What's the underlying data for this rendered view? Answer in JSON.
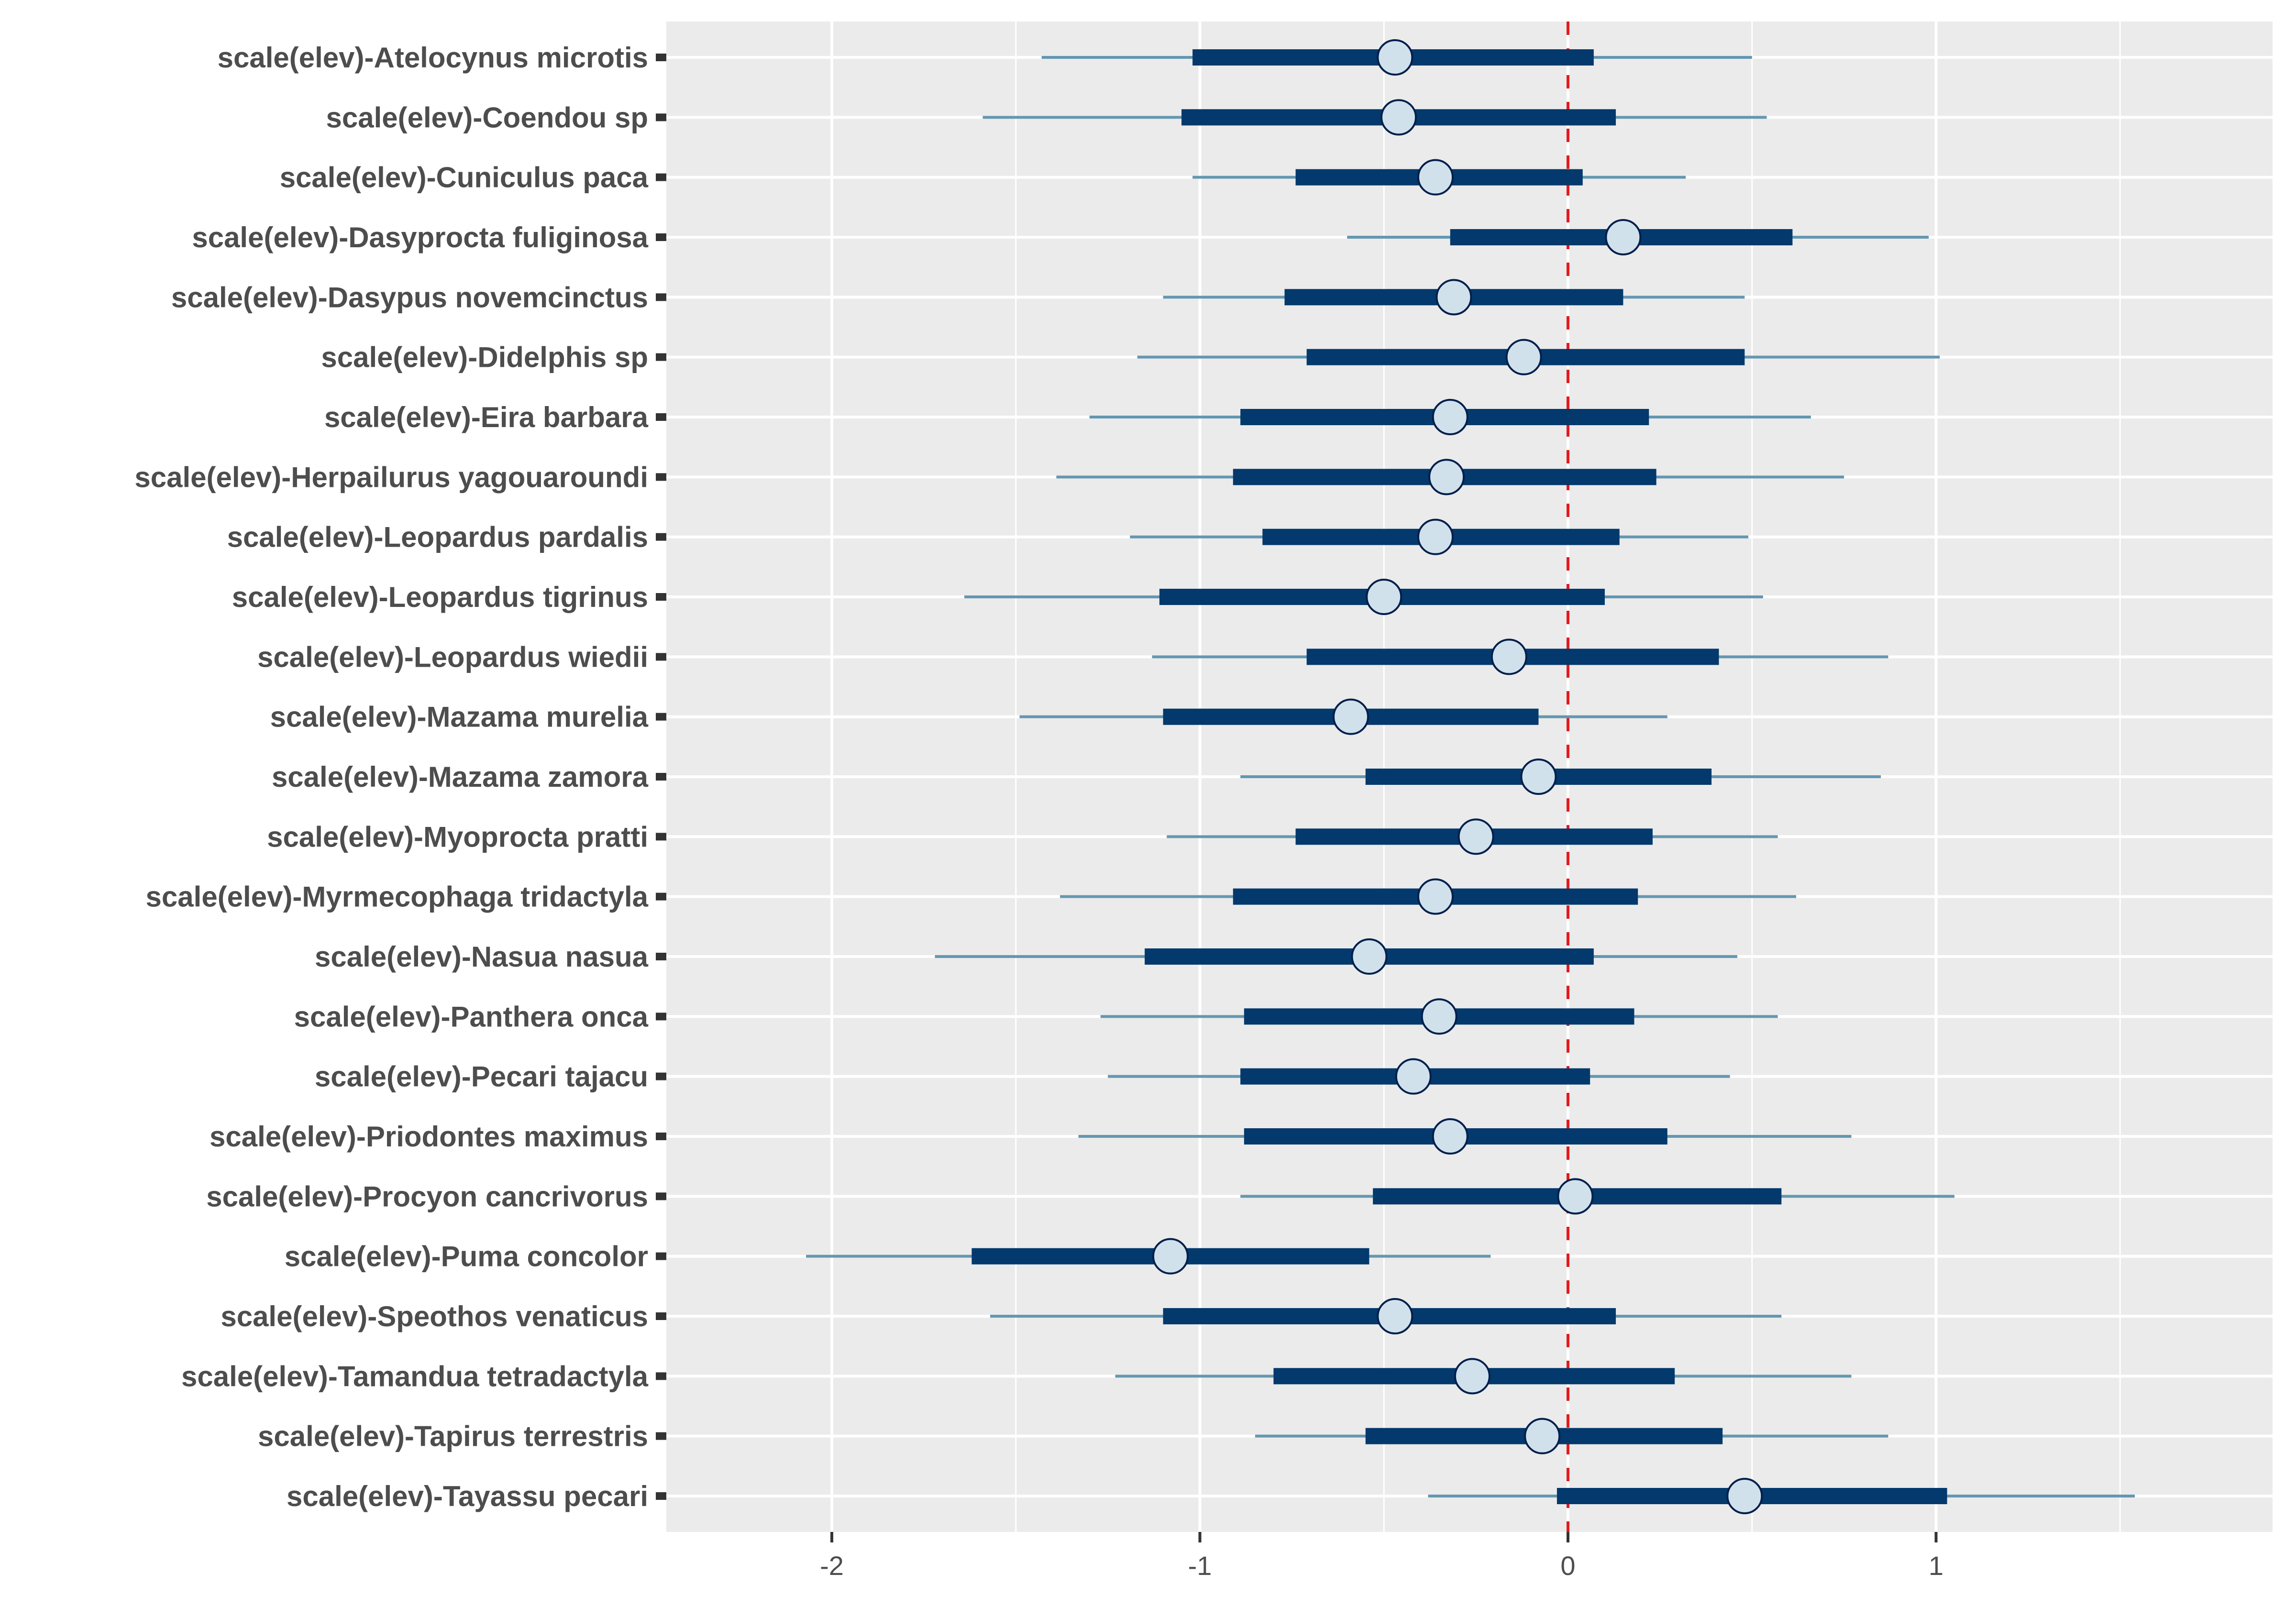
{
  "chart_data": {
    "type": "interval",
    "title": "",
    "xlabel": "",
    "ylabel": "",
    "xlim": [
      -2.45,
      1.9
    ],
    "x_ticks": [
      -2,
      -1,
      0,
      1
    ],
    "x_tick_labels": [
      "-2",
      "-1",
      "0",
      "1"
    ],
    "x_minor_gridlines": [
      -1.5,
      -0.5,
      0.5,
      1.5
    ],
    "reference_line": {
      "x": 0,
      "style": "dashed",
      "color": "#e41a1c"
    },
    "grid": true,
    "legend": "none",
    "colors": {
      "panel_background": "#ebebeb",
      "gridline": "#ffffff",
      "outer_interval": "#6497b1",
      "inner_interval": "#03396c",
      "point_fill": "#d1e1ec",
      "point_stroke": "#011f4b",
      "axis_text": "#4d4d4d",
      "tick": "#333333"
    },
    "series": [
      {
        "label": "scale(elev)-Atelocynus microtis",
        "outer": [
          -1.43,
          0.5
        ],
        "inner": [
          -1.02,
          0.07
        ],
        "estimate": -0.47
      },
      {
        "label": "scale(elev)-Coendou sp",
        "outer": [
          -1.59,
          0.54
        ],
        "inner": [
          -1.05,
          0.13
        ],
        "estimate": -0.46
      },
      {
        "label": "scale(elev)-Cuniculus paca",
        "outer": [
          -1.02,
          0.32
        ],
        "inner": [
          -0.74,
          0.04
        ],
        "estimate": -0.36
      },
      {
        "label": "scale(elev)-Dasyprocta fuliginosa",
        "outer": [
          -0.6,
          0.98
        ],
        "inner": [
          -0.32,
          0.61
        ],
        "estimate": 0.15
      },
      {
        "label": "scale(elev)-Dasypus novemcinctus",
        "outer": [
          -1.1,
          0.48
        ],
        "inner": [
          -0.77,
          0.15
        ],
        "estimate": -0.31
      },
      {
        "label": "scale(elev)-Didelphis sp",
        "outer": [
          -1.17,
          1.01
        ],
        "inner": [
          -0.71,
          0.48
        ],
        "estimate": -0.12
      },
      {
        "label": "scale(elev)-Eira barbara",
        "outer": [
          -1.3,
          0.66
        ],
        "inner": [
          -0.89,
          0.22
        ],
        "estimate": -0.32
      },
      {
        "label": "scale(elev)-Herpailurus yagouaroundi",
        "outer": [
          -1.39,
          0.75
        ],
        "inner": [
          -0.91,
          0.24
        ],
        "estimate": -0.33
      },
      {
        "label": "scale(elev)-Leopardus pardalis",
        "outer": [
          -1.19,
          0.49
        ],
        "inner": [
          -0.83,
          0.14
        ],
        "estimate": -0.36
      },
      {
        "label": "scale(elev)-Leopardus tigrinus",
        "outer": [
          -1.64,
          0.53
        ],
        "inner": [
          -1.11,
          0.1
        ],
        "estimate": -0.5
      },
      {
        "label": "scale(elev)-Leopardus wiedii",
        "outer": [
          -1.13,
          0.87
        ],
        "inner": [
          -0.71,
          0.41
        ],
        "estimate": -0.16
      },
      {
        "label": "scale(elev)-Mazama murelia",
        "outer": [
          -1.49,
          0.27
        ],
        "inner": [
          -1.1,
          -0.08
        ],
        "estimate": -0.59
      },
      {
        "label": "scale(elev)-Mazama zamora",
        "outer": [
          -0.89,
          0.85
        ],
        "inner": [
          -0.55,
          0.39
        ],
        "estimate": -0.08
      },
      {
        "label": "scale(elev)-Myoprocta pratti",
        "outer": [
          -1.09,
          0.57
        ],
        "inner": [
          -0.74,
          0.23
        ],
        "estimate": -0.25
      },
      {
        "label": "scale(elev)-Myrmecophaga tridactyla",
        "outer": [
          -1.38,
          0.62
        ],
        "inner": [
          -0.91,
          0.19
        ],
        "estimate": -0.36
      },
      {
        "label": "scale(elev)-Nasua nasua",
        "outer": [
          -1.72,
          0.46
        ],
        "inner": [
          -1.15,
          0.07
        ],
        "estimate": -0.54
      },
      {
        "label": "scale(elev)-Panthera onca",
        "outer": [
          -1.27,
          0.57
        ],
        "inner": [
          -0.88,
          0.18
        ],
        "estimate": -0.35
      },
      {
        "label": "scale(elev)-Pecari tajacu",
        "outer": [
          -1.25,
          0.44
        ],
        "inner": [
          -0.89,
          0.06
        ],
        "estimate": -0.42
      },
      {
        "label": "scale(elev)-Priodontes maximus",
        "outer": [
          -1.33,
          0.77
        ],
        "inner": [
          -0.88,
          0.27
        ],
        "estimate": -0.32
      },
      {
        "label": "scale(elev)-Procyon cancrivorus",
        "outer": [
          -0.89,
          1.05
        ],
        "inner": [
          -0.53,
          0.58
        ],
        "estimate": 0.02
      },
      {
        "label": "scale(elev)-Puma concolor",
        "outer": [
          -2.07,
          -0.21
        ],
        "inner": [
          -1.62,
          -0.54
        ],
        "estimate": -1.08
      },
      {
        "label": "scale(elev)-Speothos venaticus",
        "outer": [
          -1.57,
          0.58
        ],
        "inner": [
          -1.1,
          0.13
        ],
        "estimate": -0.47
      },
      {
        "label": "scale(elev)-Tamandua tetradactyla",
        "outer": [
          -1.23,
          0.77
        ],
        "inner": [
          -0.8,
          0.29
        ],
        "estimate": -0.26
      },
      {
        "label": "scale(elev)-Tapirus terrestris",
        "outer": [
          -0.85,
          0.87
        ],
        "inner": [
          -0.55,
          0.42
        ],
        "estimate": -0.07
      },
      {
        "label": "scale(elev)-Tayassu pecari",
        "outer": [
          -0.38,
          1.54
        ],
        "inner": [
          -0.03,
          1.03
        ],
        "estimate": 0.48
      }
    ]
  }
}
